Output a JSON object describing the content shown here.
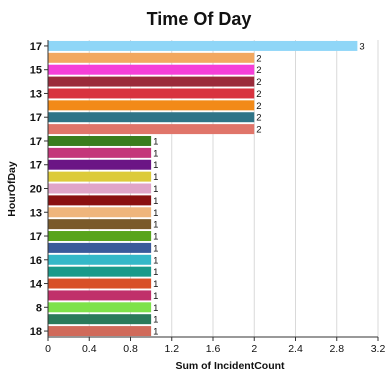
{
  "chart_data": {
    "type": "bar",
    "orientation": "horizontal",
    "title": "Time Of Day",
    "xlabel": "Sum of IncidentCount",
    "ylabel": "HourOfDay",
    "xlim": [
      0,
      3.2
    ],
    "xticks": [
      "0",
      "0.4",
      "0.8",
      "1.2",
      "1.6",
      "2",
      "2.4",
      "2.8",
      "3.2"
    ],
    "grid": true,
    "legend": "none",
    "visible_category_labels": [
      "17",
      "15",
      "13",
      "17",
      "17",
      "17",
      "20",
      "13",
      "17",
      "16",
      "14",
      "8",
      "18"
    ],
    "bars": [
      {
        "category": "17",
        "value": 3,
        "color": "#8fd6f7"
      },
      {
        "category": "",
        "value": 2,
        "color": "#f2a860"
      },
      {
        "category": "15",
        "value": 2,
        "color": "#f53fd8"
      },
      {
        "category": "",
        "value": 2,
        "color": "#9b2b3b"
      },
      {
        "category": "13",
        "value": 2,
        "color": "#d8323f"
      },
      {
        "category": "",
        "value": 2,
        "color": "#f28a18"
      },
      {
        "category": "17",
        "value": 2,
        "color": "#2f7487"
      },
      {
        "category": "",
        "value": 2,
        "color": "#e0756a"
      },
      {
        "category": "17",
        "value": 1,
        "color": "#3a7d1e"
      },
      {
        "category": "",
        "value": 1,
        "color": "#c4367a"
      },
      {
        "category": "17",
        "value": 1,
        "color": "#6b1585"
      },
      {
        "category": "",
        "value": 1,
        "color": "#dccb3a"
      },
      {
        "category": "20",
        "value": 1,
        "color": "#e0a5c8"
      },
      {
        "category": "",
        "value": 1,
        "color": "#8a1010"
      },
      {
        "category": "13",
        "value": 1,
        "color": "#efb57c"
      },
      {
        "category": "",
        "value": 1,
        "color": "#7a5a2a"
      },
      {
        "category": "17",
        "value": 1,
        "color": "#58a41c"
      },
      {
        "category": "",
        "value": 1,
        "color": "#3a5a9a"
      },
      {
        "category": "16",
        "value": 1,
        "color": "#34b8c8"
      },
      {
        "category": "",
        "value": 1,
        "color": "#1a9a8a"
      },
      {
        "category": "14",
        "value": 1,
        "color": "#d85028"
      },
      {
        "category": "",
        "value": 1,
        "color": "#c0306a"
      },
      {
        "category": "8",
        "value": 1,
        "color": "#7ee24a"
      },
      {
        "category": "",
        "value": 1,
        "color": "#2a7a5a"
      },
      {
        "category": "18",
        "value": 1,
        "color": "#d06a5a"
      }
    ]
  }
}
